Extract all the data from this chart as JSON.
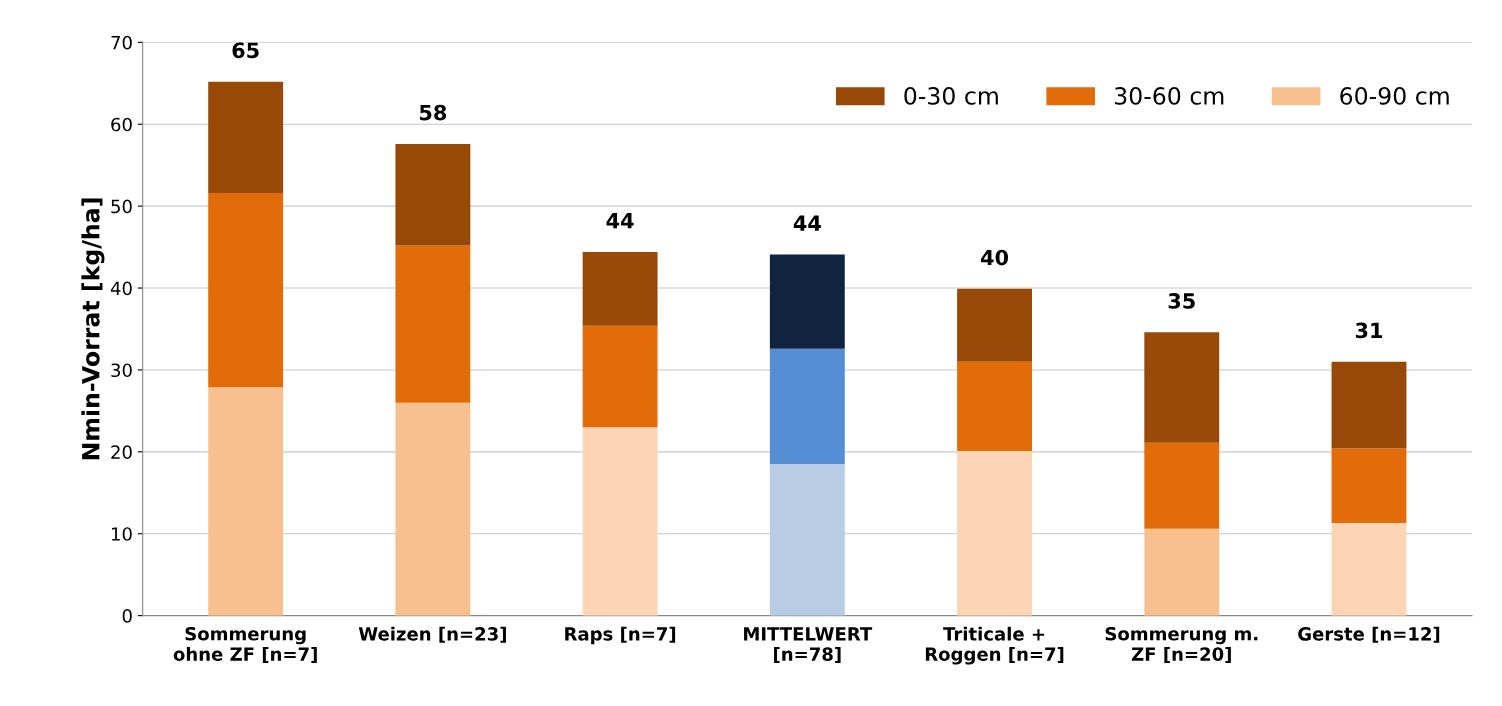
{
  "chart_data": {
    "type": "bar",
    "stacked": true,
    "ylabel": "Nmin-Vorrat [kg/ha]",
    "categories": [
      "Sommerung\nohne ZF [n=7]",
      "Weizen [n=23]",
      "Raps [n=7]",
      "MITTELWERT\n[n=78]",
      "Triticale +\nRoggen [n=7]",
      "Sommerung m.\nZF [n=20]",
      "Gerste [n=12]"
    ],
    "series": [
      {
        "name": "60-90 cm",
        "color": "#f9c08f",
        "colors": [
          "#f9c08f",
          "#f9c08f",
          "#fbd5b5",
          "#b8cce4",
          "#fbd5b5",
          "#f9c08f",
          "#fbd5b5"
        ],
        "values": [
          27.9,
          26.0,
          23.0,
          18.5,
          20.1,
          10.6,
          11.3
        ]
      },
      {
        "name": "30-60 cm",
        "color": "#e36c0a",
        "colors": [
          "#e36c0a",
          "#e36c0a",
          "#e36c0a",
          "#558ed5",
          "#e36c0a",
          "#e36c0a",
          "#e36c0a"
        ],
        "values": [
          23.7,
          19.2,
          12.4,
          14.1,
          10.9,
          10.5,
          9.1
        ]
      },
      {
        "name": "0-30 cm",
        "color": "#984807",
        "colors": [
          "#984807",
          "#984807",
          "#984807",
          "#10243f",
          "#984807",
          "#984807",
          "#984807"
        ],
        "values": [
          13.6,
          12.4,
          9.0,
          11.5,
          8.9,
          13.5,
          10.6
        ]
      }
    ],
    "totals": [
      "65",
      "58",
      "44",
      "44",
      "40",
      "35",
      "31"
    ],
    "ylim": [
      0,
      70
    ],
    "yticks": [
      0,
      10,
      20,
      30,
      40,
      50,
      60,
      70
    ],
    "grid": "y",
    "legend": "top right"
  }
}
